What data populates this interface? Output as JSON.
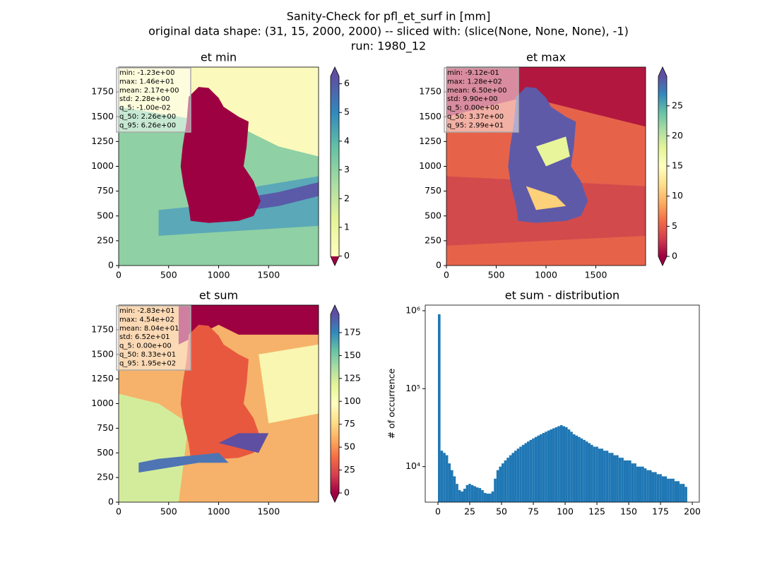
{
  "suptitle": [
    "Sanity-Check for pfl_et_surf in [mm]",
    "original data shape: (31, 15, 2000, 2000) -- sliced with: (slice(None, None, None), -1)",
    "run: 1980_12"
  ],
  "chart_data": [
    {
      "type": "heatmap",
      "title": "et min",
      "xlim": [
        0,
        2000
      ],
      "ylim": [
        0,
        2000
      ],
      "xticks": [
        0,
        500,
        1000,
        1500
      ],
      "yticks": [
        0,
        250,
        500,
        750,
        1000,
        1250,
        1500,
        1750
      ],
      "annotation": [
        "min: -1.23e+00",
        "max: 1.46e+01",
        "mean: 2.17e+00",
        "std: 2.28e+00",
        "q_5: -1.00e-02",
        "q_50: 2.26e+00",
        "q_95: 6.26e+00"
      ],
      "clim": [
        -0.01,
        6.26
      ],
      "cticks": [
        0,
        1,
        2,
        3,
        4,
        5,
        6
      ],
      "colormap": [
        "#ffffbf",
        "#e6f598",
        "#abdda4",
        "#66c2a5",
        "#3288bd",
        "#5e4fa2"
      ],
      "under_color": "#9e0142",
      "over_color": "#5e4fa2"
    },
    {
      "type": "heatmap",
      "title": "et max",
      "xlim": [
        0,
        2000
      ],
      "ylim": [
        0,
        2000
      ],
      "xticks": [
        0,
        500,
        1000,
        1500
      ],
      "yticks": [
        0,
        250,
        500,
        750,
        1000,
        1250,
        1500,
        1750
      ],
      "annotation": [
        "min: -9.12e-01",
        "max: 1.28e+02",
        "mean: 6.50e+00",
        "std: 9.90e+00",
        "q_5: 0.00e+00",
        "q_50: 3.37e+00",
        "q_95: 2.99e+01"
      ],
      "clim": [
        0,
        29.9
      ],
      "cticks": [
        0,
        5,
        10,
        15,
        20,
        25
      ],
      "colormap": [
        "#9e0142",
        "#d53e4f",
        "#f46d43",
        "#fdae61",
        "#fee08b",
        "#ffffbf",
        "#e6f598",
        "#abdda4",
        "#66c2a5",
        "#3288bd",
        "#5e4fa2"
      ],
      "under_color": "#9e0142",
      "over_color": "#5e4fa2"
    },
    {
      "type": "heatmap",
      "title": "et sum",
      "xlim": [
        0,
        2000
      ],
      "ylim": [
        0,
        2000
      ],
      "xticks": [
        0,
        500,
        1000,
        1500
      ],
      "yticks": [
        0,
        250,
        500,
        750,
        1000,
        1250,
        1500,
        1750
      ],
      "annotation": [
        "min: -2.83e+01",
        "max: 4.54e+02",
        "mean: 8.04e+01",
        "std: 6.52e+01",
        "q_5: 0.00e+00",
        "q_50: 8.33e+01",
        "q_95: 1.95e+02"
      ],
      "clim": [
        0,
        195
      ],
      "cticks": [
        0,
        25,
        50,
        75,
        100,
        125,
        150,
        175
      ],
      "colormap": [
        "#9e0142",
        "#d53e4f",
        "#f46d43",
        "#fdae61",
        "#fee08b",
        "#ffffbf",
        "#e6f598",
        "#abdda4",
        "#66c2a5",
        "#3288bd",
        "#5e4fa2"
      ],
      "under_color": "#9e0142",
      "over_color": "#5e4fa2"
    },
    {
      "type": "histogram",
      "title": "et sum - distribution",
      "y_label": "# of occurrence",
      "color": "#1f77b4",
      "log_y": true,
      "xlim": [
        -10,
        205.5
      ],
      "ylim": [
        3500,
        1180000
      ],
      "xticks": [
        0,
        25,
        50,
        75,
        100,
        125,
        150,
        175,
        200
      ],
      "yticks": [
        {
          "value": 10000,
          "label": "10⁴"
        },
        {
          "value": 100000,
          "label": "10⁵"
        },
        {
          "value": 1000000,
          "label": "10⁶"
        }
      ],
      "bins": [
        0,
        2,
        4,
        6,
        8,
        10,
        12,
        14,
        16,
        18,
        20,
        22,
        24,
        26,
        28,
        30,
        32,
        34,
        36,
        38,
        40,
        42,
        44,
        46,
        48,
        50,
        52,
        54,
        56,
        58,
        60,
        62,
        64,
        66,
        68,
        70,
        72,
        74,
        76,
        78,
        80,
        82,
        84,
        86,
        88,
        90,
        92,
        94,
        96,
        98,
        100,
        102,
        104,
        106,
        108,
        110,
        112,
        114,
        116,
        118,
        120,
        122,
        124,
        126,
        128,
        130,
        132,
        134,
        136,
        138,
        140,
        142,
        144,
        146,
        148,
        150,
        152,
        154,
        156,
        158,
        160,
        162,
        164,
        166,
        168,
        170,
        172,
        174,
        176,
        178,
        180,
        182,
        184,
        186,
        188,
        190,
        192,
        194,
        196
      ],
      "values": [
        900000,
        16000,
        15000,
        14000,
        11000,
        9000,
        7500,
        6000,
        5000,
        4800,
        5200,
        5800,
        6000,
        5800,
        5600,
        5400,
        5300,
        5000,
        4600,
        4500,
        4500,
        4800,
        7000,
        9000,
        10000,
        11000,
        12000,
        13000,
        14000,
        15000,
        16000,
        17000,
        18000,
        19000,
        20000,
        21000,
        22000,
        23000,
        24000,
        25000,
        26000,
        27000,
        28000,
        29000,
        30000,
        31000,
        32000,
        33000,
        34000,
        33000,
        32000,
        30000,
        28000,
        26000,
        25000,
        24000,
        23000,
        22000,
        21000,
        20000,
        19000,
        18000,
        18000,
        17000,
        17000,
        16000,
        16000,
        15000,
        15000,
        14000,
        14000,
        13000,
        13000,
        12000,
        12000,
        12000,
        11000,
        11000,
        10000,
        10000,
        10000,
        9500,
        9000,
        9000,
        8500,
        8500,
        8000,
        8000,
        7500,
        7500,
        7000,
        7000,
        7000,
        6500,
        6500,
        6000,
        6000,
        5500
      ]
    }
  ]
}
